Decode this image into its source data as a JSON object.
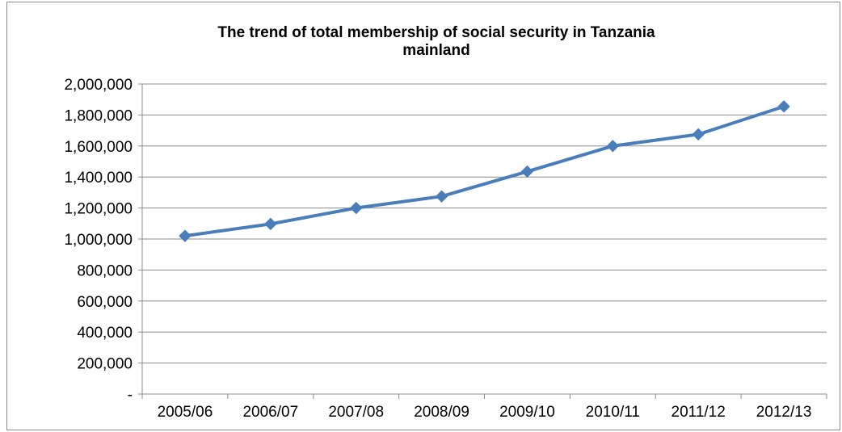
{
  "chart_data": {
    "type": "line",
    "title": "The trend of total membership of social security in Tanzania mainland",
    "title_lines": [
      "The trend of total membership of social security in Tanzania",
      "mainland"
    ],
    "categories": [
      "2005/06",
      "2006/07",
      "2007/08",
      "2008/09",
      "2009/10",
      "2010/11",
      "2011/12",
      "2012/13"
    ],
    "series": [
      {
        "values": [
          1020000,
          1097000,
          1200000,
          1275000,
          1435000,
          1600000,
          1675000,
          1855000
        ],
        "color": "#4a7ebb"
      }
    ],
    "ylim": [
      0,
      2000000
    ],
    "yticks": [
      0,
      200000,
      400000,
      600000,
      800000,
      1000000,
      1200000,
      1400000,
      1600000,
      1800000,
      2000000
    ],
    "ytick_labels": [
      "-",
      "200,000",
      "400,000",
      "600,000",
      "800,000",
      "1,000,000",
      "1,200,000",
      "1,400,000",
      "1,600,000",
      "1,800,000",
      "2,000,000"
    ],
    "xlabel": "",
    "ylabel": "",
    "grid": "horizontal",
    "legend": "none",
    "marker": "diamond"
  }
}
